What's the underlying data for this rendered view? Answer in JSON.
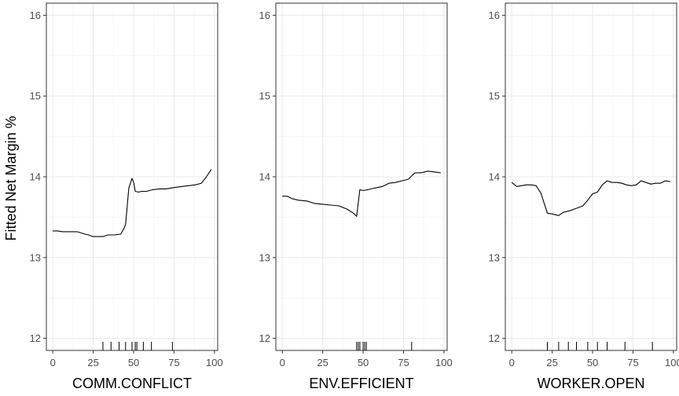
{
  "chart_data": {
    "type": "line",
    "ylabel": "Fitted Net Margin %",
    "ylim": [
      11.85,
      16.15
    ],
    "yticks": [
      12,
      13,
      14,
      15,
      16
    ],
    "xlim": [
      -4,
      102
    ],
    "xticks": [
      0,
      25,
      50,
      75,
      100
    ],
    "grid": true,
    "panels": [
      {
        "xlabel": "COMM.CONFLICT",
        "series": [
          {
            "x": [
              0,
              3,
              6,
              10,
              15,
              20,
              22,
              25,
              28,
              31,
              34,
              38,
              42,
              44,
              45,
              47,
              49,
              50,
              51,
              53,
              55,
              58,
              62,
              66,
              70,
              73,
              76,
              80,
              84,
              88,
              92,
              95,
              98
            ],
            "values": [
              13.33,
              13.33,
              13.32,
              13.32,
              13.32,
              13.29,
              13.28,
              13.26,
              13.26,
              13.26,
              13.28,
              13.28,
              13.29,
              13.36,
              13.41,
              13.86,
              13.98,
              13.93,
              13.82,
              13.81,
              13.82,
              13.82,
              13.84,
              13.85,
              13.85,
              13.86,
              13.87,
              13.88,
              13.89,
              13.9,
              13.92,
              14.0,
              14.09
            ]
          }
        ],
        "rug": [
          31,
          36,
          41,
          45,
          49,
          51,
          52,
          56,
          61,
          74
        ]
      },
      {
        "xlabel": "ENV.EFFICIENT",
        "series": [
          {
            "x": [
              0,
              3,
              6,
              10,
              15,
              20,
              25,
              30,
              35,
              40,
              44,
              46,
              48,
              50,
              53,
              57,
              62,
              66,
              70,
              74,
              78,
              82,
              86,
              90,
              94,
              98
            ],
            "values": [
              13.76,
              13.76,
              13.73,
              13.71,
              13.7,
              13.67,
              13.66,
              13.65,
              13.64,
              13.6,
              13.55,
              13.51,
              13.84,
              13.83,
              13.84,
              13.86,
              13.88,
              13.92,
              13.93,
              13.95,
              13.97,
              14.05,
              14.05,
              14.07,
              14.06,
              14.05
            ]
          }
        ],
        "rug": [
          46,
          47,
          48,
          50,
          51,
          52,
          80
        ]
      },
      {
        "xlabel": "WORKER.OPEN",
        "series": [
          {
            "x": [
              0,
              3,
              6,
              9,
              12,
              15,
              18,
              22,
              25,
              29,
              32,
              36,
              40,
              44,
              47,
              50,
              53,
              56,
              59,
              62,
              65,
              68,
              71,
              74,
              77,
              80,
              83,
              86,
              89,
              92,
              95,
              98
            ],
            "values": [
              13.93,
              13.88,
              13.89,
              13.9,
              13.9,
              13.89,
              13.8,
              13.55,
              13.54,
              13.52,
              13.56,
              13.58,
              13.61,
              13.64,
              13.71,
              13.79,
              13.81,
              13.9,
              13.95,
              13.93,
              13.93,
              13.92,
              13.9,
              13.89,
              13.9,
              13.95,
              13.93,
              13.91,
              13.92,
              13.92,
              13.95,
              13.94
            ]
          }
        ],
        "rug": [
          22,
          29,
          35,
          40,
          47,
          53,
          59,
          70,
          87
        ]
      }
    ]
  }
}
